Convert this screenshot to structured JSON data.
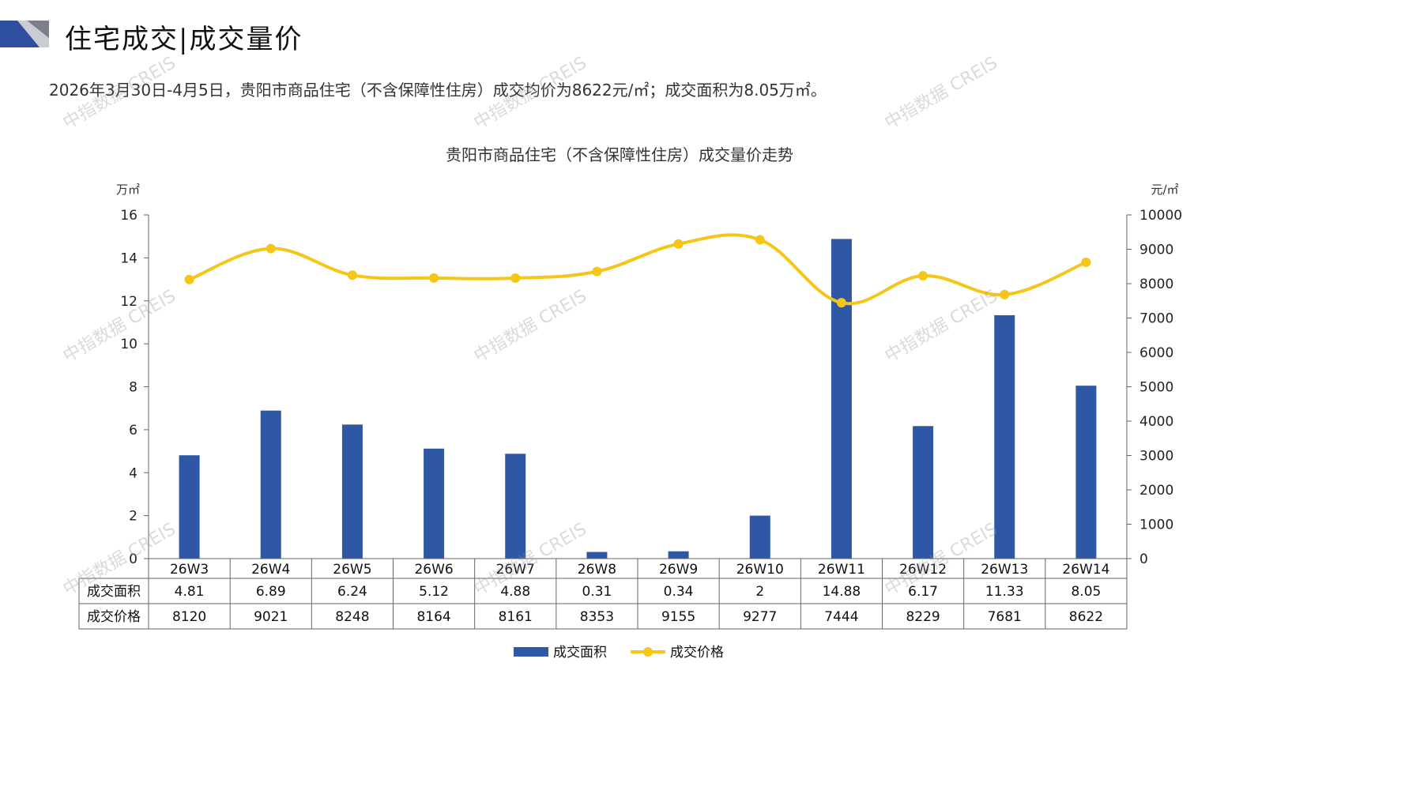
{
  "page": {
    "title": "住宅成交|成交量价",
    "summary": "2026年3月30日-4月5日，贵阳市商品住宅（不含保障性住房）成交均价为8622元/㎡；成交面积为8.05万㎡。",
    "watermark": "中指数据 CREIS"
  },
  "colors": {
    "bar": "#2E58A6",
    "line": "#F5C518",
    "axis": "#666666",
    "accent": "#1F3F8F"
  },
  "chart_data": {
    "type": "bar+line",
    "title": "贵阳市商品住宅（不含保障性住房）成交量价走势",
    "categories": [
      "26W3",
      "26W4",
      "26W5",
      "26W6",
      "26W7",
      "26W8",
      "26W9",
      "26W10",
      "26W11",
      "26W12",
      "26W13",
      "26W14"
    ],
    "y_left_label": "万㎡",
    "y_right_label": "元/㎡",
    "ylim_left": [
      0,
      16
    ],
    "ylim_right": [
      0,
      10000
    ],
    "y_left_ticks": [
      0,
      2,
      4,
      6,
      8,
      10,
      12,
      14,
      16
    ],
    "y_right_ticks": [
      0,
      1000,
      2000,
      3000,
      4000,
      5000,
      6000,
      7000,
      8000,
      9000,
      10000
    ],
    "series": [
      {
        "name": "成交面积",
        "type": "bar",
        "axis": "left",
        "values": [
          4.81,
          6.89,
          6.24,
          5.12,
          4.88,
          0.31,
          0.34,
          2,
          14.88,
          6.17,
          11.33,
          8.05
        ],
        "labels": [
          "4.81",
          "6.89",
          "6.24",
          "5.12",
          "4.88",
          "0.31",
          "0.34",
          "2",
          "14.88",
          "6.17",
          "11.33",
          "8.05"
        ]
      },
      {
        "name": "成交价格",
        "type": "line",
        "axis": "right",
        "values": [
          8120,
          9021,
          8248,
          8164,
          8161,
          8353,
          9155,
          9277,
          7444,
          8229,
          7681,
          8622
        ],
        "labels": [
          "8120",
          "9021",
          "8248",
          "8164",
          "8161",
          "8353",
          "9155",
          "9277",
          "7444",
          "8229",
          "7681",
          "8622"
        ]
      }
    ],
    "legend": "bottom",
    "grid": false
  }
}
